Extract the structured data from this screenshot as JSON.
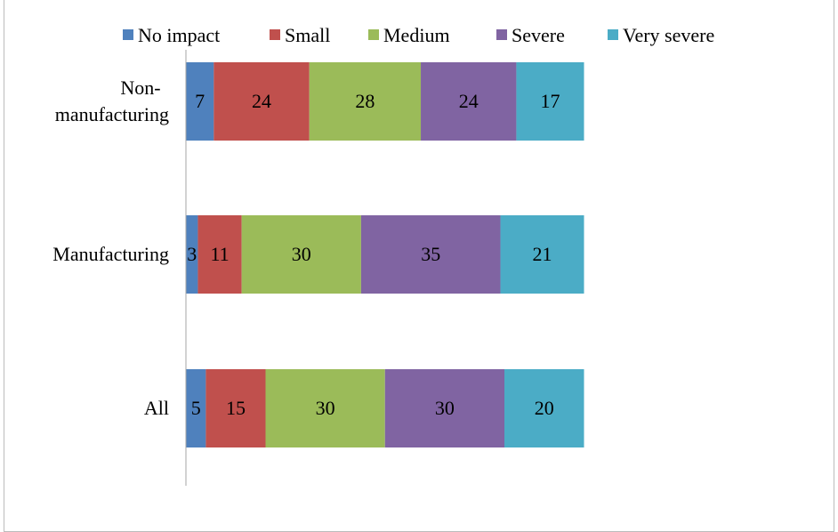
{
  "chart_data": {
    "type": "bar",
    "orientation": "horizontal",
    "stacked": true,
    "title": "",
    "xlabel": "",
    "ylabel": "",
    "xlim": [
      0,
      100
    ],
    "grid": false,
    "legend_position": "top",
    "categories": [
      "Non-manufacturing",
      "Manufacturing",
      "All"
    ],
    "category_label_lines": [
      [
        "Non-",
        "manufacturing"
      ],
      [
        "Manufacturing"
      ],
      [
        "All"
      ]
    ],
    "series": [
      {
        "name": "No impact",
        "color": "#4F81BD",
        "values": [
          7,
          3,
          5
        ]
      },
      {
        "name": "Small",
        "color": "#C0504D",
        "values": [
          24,
          11,
          15
        ]
      },
      {
        "name": "Medium",
        "color": "#9BBB59",
        "values": [
          28,
          30,
          30
        ]
      },
      {
        "name": "Severe",
        "color": "#8064A2",
        "values": [
          24,
          35,
          30
        ]
      },
      {
        "name": "Very severe",
        "color": "#4BACC6",
        "values": [
          17,
          21,
          20
        ]
      }
    ],
    "colors": {
      "axis": "#a6a6a6",
      "text": "#000000",
      "frame": "#bcbcbc"
    }
  }
}
